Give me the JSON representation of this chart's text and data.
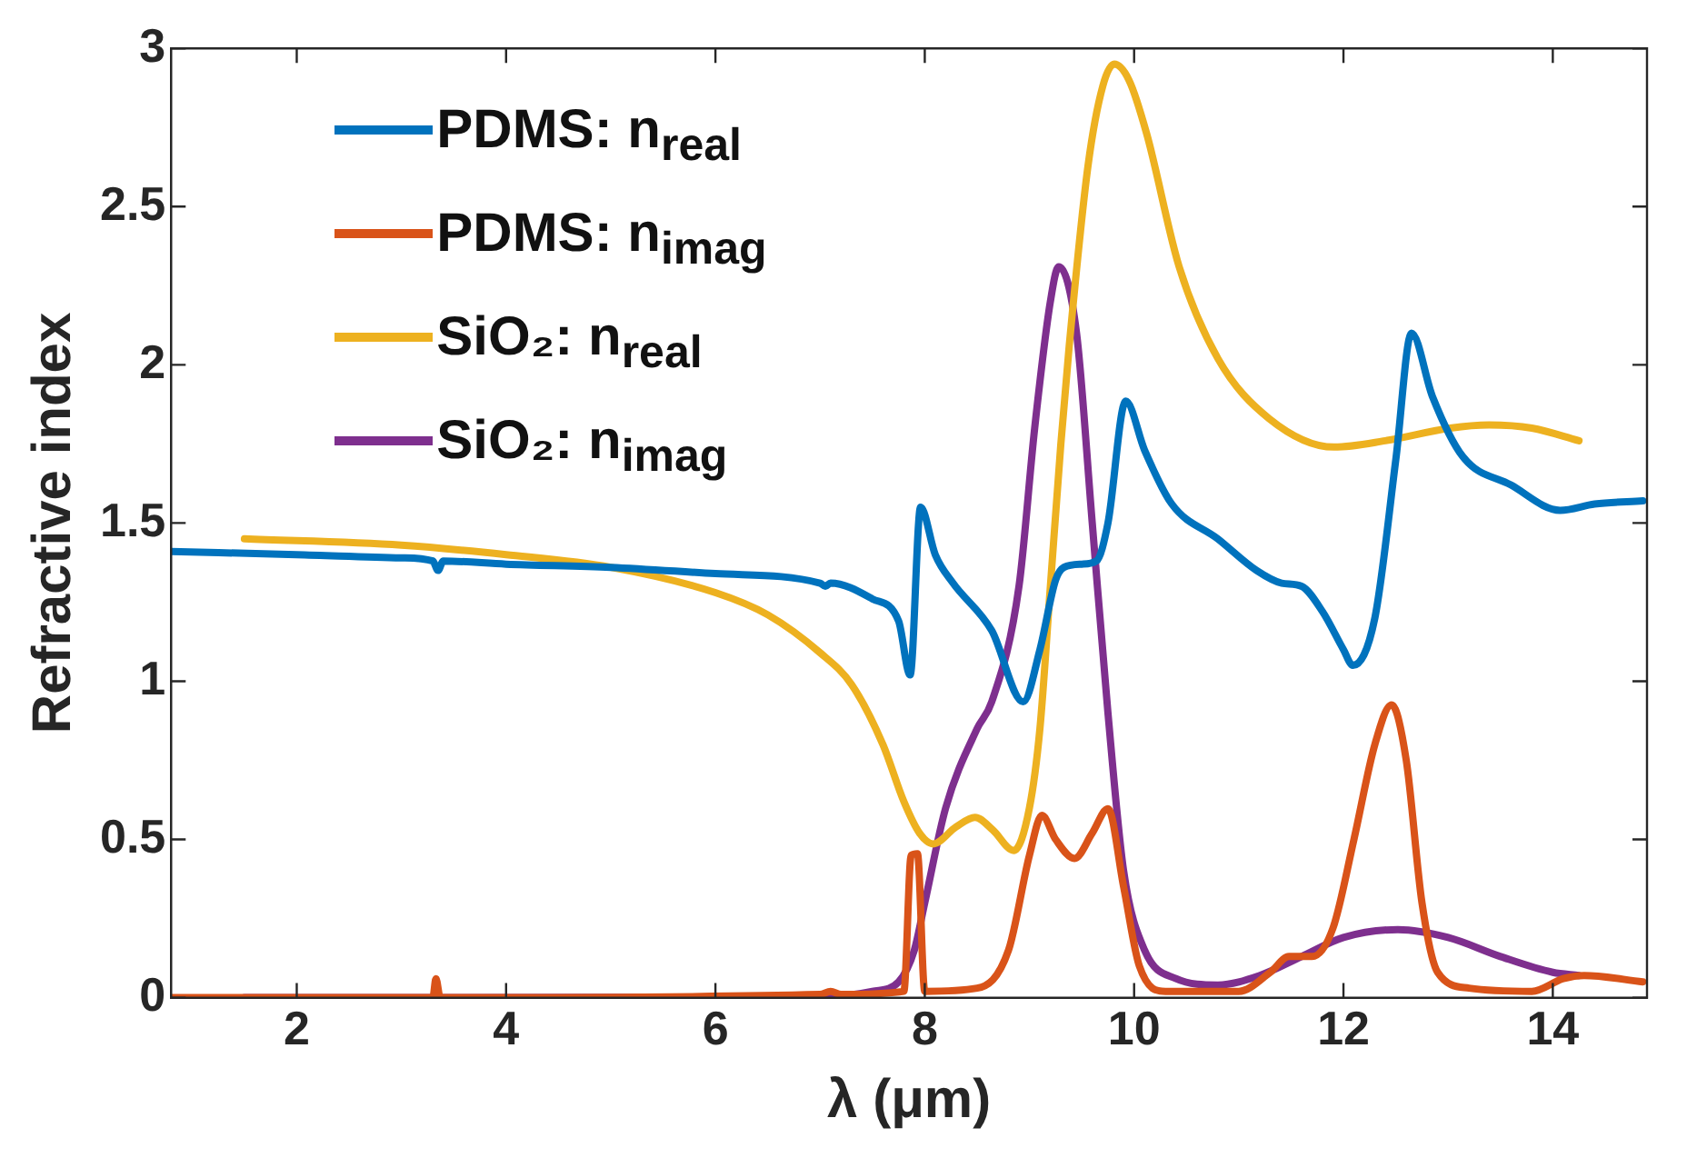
{
  "chart_data": {
    "type": "line",
    "xlabel": "λ (μm)",
    "ylabel": "Refractive index",
    "xlim": [
      0.8,
      14.9
    ],
    "xticks": [
      2,
      4,
      6,
      8,
      10,
      12,
      14
    ],
    "ylim": [
      0,
      3
    ],
    "yticks": [
      0,
      0.5,
      1,
      1.5,
      2,
      2.5,
      3
    ],
    "grid": false,
    "legend": "top left",
    "marker": "none",
    "line_style": "solid",
    "series": [
      {
        "name": "PDMS: n$_{real}$",
        "color": "#0072bd",
        "x": [
          0.8,
          2,
          3,
          3.3,
          3.35,
          3.4,
          4,
          5,
          6,
          7,
          7.05,
          7.1,
          7.5,
          7.75,
          7.86,
          7.96,
          8.1,
          8.27,
          8.64,
          8.94,
          9.1,
          9.25,
          9.33,
          9.5,
          9.64,
          9.75,
          9.92,
          10.1,
          10.36,
          10.8,
          11.17,
          11.41,
          11.6,
          11.8,
          12.0,
          12.09,
          12.3,
          12.5,
          12.65,
          12.85,
          13.14,
          13.6,
          14.07,
          14.4,
          14.86
        ],
        "values": [
          1.41,
          1.4,
          1.39,
          1.38,
          1.35,
          1.38,
          1.37,
          1.36,
          1.34,
          1.31,
          1.3,
          1.31,
          1.26,
          1.19,
          1.02,
          1.55,
          1.4,
          1.31,
          1.16,
          0.935,
          1.1,
          1.32,
          1.36,
          1.37,
          1.38,
          1.5,
          1.885,
          1.73,
          1.56,
          1.45,
          1.35,
          1.31,
          1.3,
          1.22,
          1.1,
          1.05,
          1.2,
          1.7,
          2.1,
          1.9,
          1.71,
          1.62,
          1.54,
          1.56,
          1.57
        ]
      },
      {
        "name": "PDMS: n$_{imag}$",
        "color": "#d95319",
        "x": [
          0.8,
          3.3,
          3.33,
          3.37,
          7.0,
          7.1,
          7.2,
          7.8,
          7.87,
          7.93,
          8.0,
          8.5,
          8.8,
          9.0,
          9.12,
          9.25,
          9.43,
          9.6,
          9.75,
          9.9,
          10.05,
          10.3,
          11.0,
          11.3,
          11.48,
          11.7,
          11.9,
          12.1,
          12.3,
          12.46,
          12.6,
          12.75,
          12.9,
          13.2,
          13.8,
          14.1,
          14.3,
          14.86
        ],
        "values": [
          0,
          0,
          0.06,
          0,
          0.01,
          0.02,
          0.01,
          0.02,
          0.45,
          0.455,
          0.02,
          0.03,
          0.15,
          0.45,
          0.576,
          0.5,
          0.44,
          0.52,
          0.597,
          0.35,
          0.1,
          0.02,
          0.02,
          0.08,
          0.13,
          0.13,
          0.22,
          0.5,
          0.8,
          0.925,
          0.75,
          0.3,
          0.08,
          0.03,
          0.02,
          0.06,
          0.07,
          0.05
        ]
      },
      {
        "name": "SiO₂: n$_{real}$",
        "color": "#edb120",
        "x": [
          1.5,
          3,
          4,
          5,
          6,
          6.5,
          7,
          7.3,
          7.6,
          7.8,
          7.95,
          8.08,
          8.3,
          8.48,
          8.65,
          8.85,
          9.0,
          9.1,
          9.2,
          9.3,
          9.38,
          9.56,
          9.7,
          9.81,
          9.95,
          10.12,
          10.43,
          10.8,
          11.29,
          11.91,
          12.4,
          13.02,
          13.39,
          13.8,
          14.25
        ],
        "values": [
          1.45,
          1.43,
          1.4,
          1.36,
          1.28,
          1.21,
          1.09,
          0.99,
          0.8,
          0.62,
          0.52,
          0.486,
          0.54,
          0.57,
          0.53,
          0.465,
          0.6,
          0.85,
          1.3,
          1.75,
          2.06,
          2.63,
          2.88,
          2.95,
          2.9,
          2.73,
          2.31,
          2.02,
          1.83,
          1.74,
          1.76,
          1.8,
          1.81,
          1.8,
          1.76
        ]
      },
      {
        "name": "SiO₂: n$_{imag}$",
        "color": "#7e2f8e",
        "x": [
          1.5,
          7.0,
          7.5,
          7.75,
          7.9,
          8.0,
          8.2,
          8.5,
          8.64,
          8.9,
          9.05,
          9.2,
          9.28,
          9.45,
          9.6,
          9.75,
          9.9,
          10.1,
          10.4,
          10.8,
          11.2,
          11.6,
          12.0,
          12.52,
          13.0,
          13.5,
          14.0,
          14.25
        ],
        "values": [
          0,
          0.002,
          0.02,
          0.05,
          0.15,
          0.3,
          0.6,
          0.85,
          0.935,
          1.3,
          1.8,
          2.2,
          2.31,
          2.1,
          1.5,
          0.9,
          0.4,
          0.15,
          0.06,
          0.04,
          0.07,
          0.13,
          0.19,
          0.215,
          0.19,
          0.13,
          0.08,
          0.07
        ]
      }
    ]
  }
}
